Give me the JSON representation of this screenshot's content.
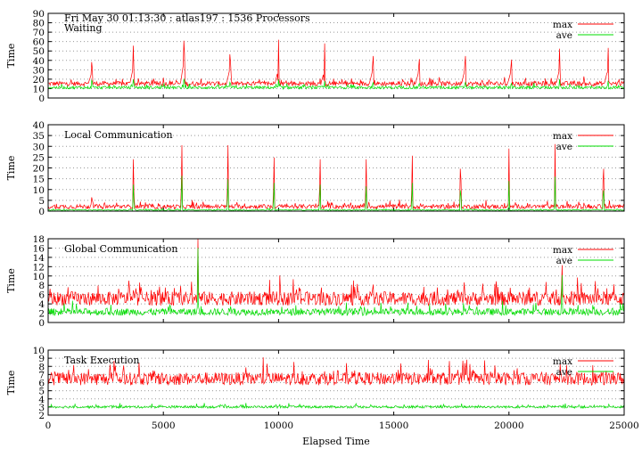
{
  "figure": {
    "header_text": "Fri May 30 01:13:30 : atlas197 : 1536 Processors",
    "xlabel": "Elapsed Time"
  },
  "colors": {
    "max": "#ff0000",
    "ave": "#00dd00",
    "grid": "#999999",
    "frame": "#000000"
  },
  "chart_data": [
    {
      "type": "line",
      "title": "Waiting",
      "ylabel": "Time",
      "xlim": [
        0,
        25000
      ],
      "ylim": [
        0,
        90
      ],
      "yticks": [
        0,
        10,
        20,
        30,
        40,
        50,
        60,
        70,
        80,
        90
      ],
      "xticks": [
        0,
        5000,
        10000,
        15000,
        20000,
        25000
      ],
      "grid": true,
      "legend": "top-right",
      "series": [
        {
          "name": "max",
          "baseline": 15,
          "noise": 5,
          "spikes": [
            [
              1900,
              52
            ],
            [
              3700,
              65
            ],
            [
              5900,
              88
            ],
            [
              7900,
              65
            ],
            [
              10000,
              62
            ],
            [
              12000,
              58
            ],
            [
              14100,
              62
            ],
            [
              16100,
              57
            ],
            [
              18100,
              62
            ],
            [
              20100,
              56
            ],
            [
              22200,
              61
            ],
            [
              24300,
              62
            ]
          ]
        },
        {
          "name": "ave",
          "baseline": 11,
          "noise": 3,
          "spikes": [
            [
              1900,
              24
            ],
            [
              3700,
              22
            ],
            [
              5900,
              26
            ],
            [
              7900,
              20
            ],
            [
              10000,
              20
            ],
            [
              12000,
              18
            ],
            [
              14100,
              20
            ],
            [
              16100,
              18
            ],
            [
              18100,
              20
            ],
            [
              20100,
              18
            ],
            [
              22200,
              22
            ],
            [
              24300,
              20
            ]
          ]
        }
      ]
    },
    {
      "type": "line",
      "title": "Local Communication",
      "ylabel": "Time",
      "xlim": [
        0,
        25000
      ],
      "ylim": [
        0,
        40
      ],
      "yticks": [
        0,
        5,
        10,
        15,
        20,
        25,
        30,
        35,
        40
      ],
      "xticks": [
        0,
        5000,
        10000,
        15000,
        20000,
        25000
      ],
      "grid": true,
      "legend": "top-right",
      "series": [
        {
          "name": "max",
          "baseline": 2,
          "noise": 2,
          "spikes": [
            [
              1900,
              9
            ],
            [
              3700,
              29
            ],
            [
              5800,
              37
            ],
            [
              7800,
              37
            ],
            [
              9800,
              30
            ],
            [
              11800,
              29
            ],
            [
              13800,
              29
            ],
            [
              15800,
              31
            ],
            [
              17900,
              30
            ],
            [
              20000,
              29
            ],
            [
              22000,
              31
            ],
            [
              24100,
              30
            ]
          ]
        },
        {
          "name": "ave",
          "baseline": 0.5,
          "noise": 0.5,
          "spikes": [
            [
              3700,
              15
            ],
            [
              5800,
              20
            ],
            [
              7800,
              18
            ],
            [
              9800,
              16
            ],
            [
              11800,
              15
            ],
            [
              13800,
              14
            ],
            [
              15800,
              16
            ],
            [
              17900,
              15
            ],
            [
              20000,
              14
            ],
            [
              22000,
              16
            ],
            [
              24100,
              15
            ]
          ]
        }
      ]
    },
    {
      "type": "line",
      "title": "Global Communication",
      "ylabel": "Time",
      "xlim": [
        0,
        25000
      ],
      "ylim": [
        0,
        18
      ],
      "yticks": [
        0,
        2,
        4,
        6,
        8,
        10,
        12,
        14,
        16,
        18
      ],
      "xticks": [
        0,
        5000,
        10000,
        15000,
        20000,
        25000
      ],
      "grid": true,
      "legend": "top-right",
      "series": [
        {
          "name": "max",
          "baseline": 5,
          "noise": 3,
          "spikes": [
            [
              6500,
              18
            ],
            [
              22300,
              14
            ],
            [
              14100,
              10
            ],
            [
              10900,
              9
            ],
            [
              3500,
              9
            ]
          ]
        },
        {
          "name": "ave",
          "baseline": 2.2,
          "noise": 1.5,
          "spikes": [
            [
              6500,
              16
            ],
            [
              22300,
              12
            ]
          ]
        }
      ]
    },
    {
      "type": "line",
      "title": "Task Execution",
      "ylabel": "Time",
      "xlabel": "Elapsed Time",
      "xlim": [
        0,
        25000
      ],
      "ylim": [
        2,
        10
      ],
      "yticks": [
        2,
        3,
        4,
        5,
        6,
        7,
        8,
        9,
        10
      ],
      "xticks": [
        0,
        5000,
        10000,
        15000,
        20000,
        25000
      ],
      "grid": true,
      "legend": "top-right",
      "series": [
        {
          "name": "max",
          "baseline": 6.4,
          "noise": 1.6,
          "spikes": []
        },
        {
          "name": "ave",
          "baseline": 3.0,
          "noise": 0.3,
          "spikes": []
        }
      ]
    }
  ]
}
